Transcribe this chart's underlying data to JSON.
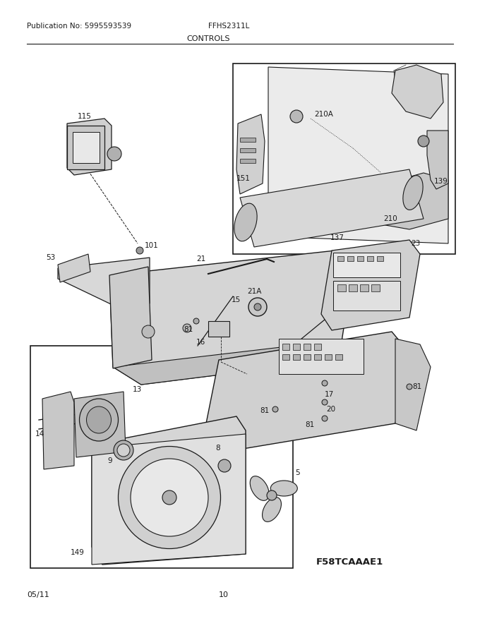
{
  "title_left": "Publication No: 5995593539",
  "title_center": "FFHS2311L",
  "section_title": "CONTROLS",
  "bottom_left": "05/11",
  "bottom_center": "10",
  "figure_code": "F58TCAAAE1",
  "bg_color": "#ffffff",
  "line_color": "#1a1a1a",
  "text_color": "#1a1a1a",
  "gray_light": "#d8d8d8",
  "gray_med": "#b8b8b8",
  "gray_dark": "#909090"
}
